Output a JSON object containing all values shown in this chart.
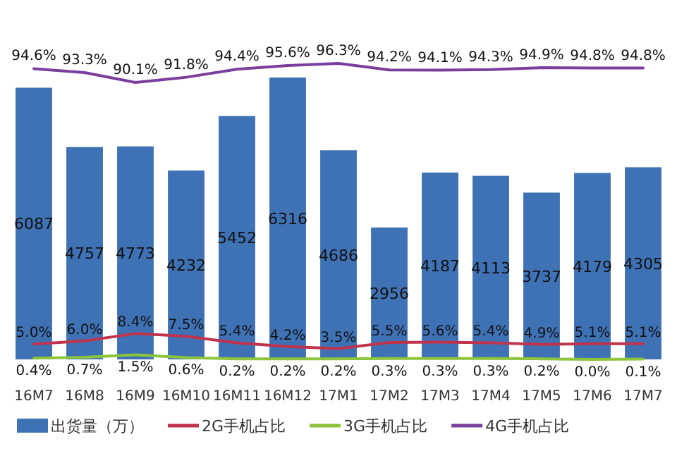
{
  "chart_data": {
    "type": "bar",
    "categories": [
      "16M7",
      "16M8",
      "16M9",
      "16M10",
      "16M11",
      "16M12",
      "17M1",
      "17M2",
      "17M3",
      "17M4",
      "17M5",
      "17M6",
      "17M7"
    ],
    "series": [
      {
        "name": "出货量（万）",
        "color": "#3f72b5",
        "values": [
          6087,
          4757,
          4773,
          4232,
          5452,
          6316,
          4686,
          2956,
          4187,
          4113,
          3737,
          4179,
          4305
        ]
      },
      {
        "name": "2G手机占比",
        "type": "line",
        "axis": "y2",
        "color": "#c0334d",
        "value_labels": [
          "5.0%",
          "6.0%",
          "8.4%",
          "7.5%",
          "5.4%",
          "4.2%",
          "3.5%",
          "5.5%",
          "5.6%",
          "5.4%",
          "4.9%",
          "5.1%",
          "5.1%"
        ],
        "values": [
          5.0,
          6.0,
          8.4,
          7.5,
          5.4,
          4.2,
          3.5,
          5.5,
          5.6,
          5.4,
          4.9,
          5.1,
          5.1
        ]
      },
      {
        "name": "3G手机占比",
        "type": "line",
        "axis": "y2",
        "color": "#8cc43c",
        "value_labels": [
          "0.4%",
          "0.7%",
          "1.5%",
          "0.6%",
          "0.2%",
          "0.2%",
          "0.2%",
          "0.3%",
          "0.3%",
          "0.3%",
          "0.2%",
          "0.0%",
          "0.1%"
        ],
        "values": [
          0.4,
          0.7,
          1.5,
          0.6,
          0.2,
          0.2,
          0.2,
          0.3,
          0.3,
          0.3,
          0.2,
          0.0,
          0.1
        ]
      },
      {
        "name": "4G手机占比",
        "type": "line",
        "axis": "y2",
        "color": "#7a3f9d",
        "value_labels": [
          "94.6%",
          "93.3%",
          "90.1%",
          "91.8%",
          "94.4%",
          "95.6%",
          "96.3%",
          "94.2%",
          "94.1%",
          "94.3%",
          "94.9%",
          "94.8%",
          "94.8%"
        ],
        "values": [
          94.6,
          93.3,
          90.1,
          91.8,
          94.4,
          95.6,
          96.3,
          94.2,
          94.1,
          94.3,
          94.9,
          94.8,
          94.8
        ]
      }
    ],
    "data_labels": true,
    "legend": "bottom",
    "tick_labels": "x"
  }
}
